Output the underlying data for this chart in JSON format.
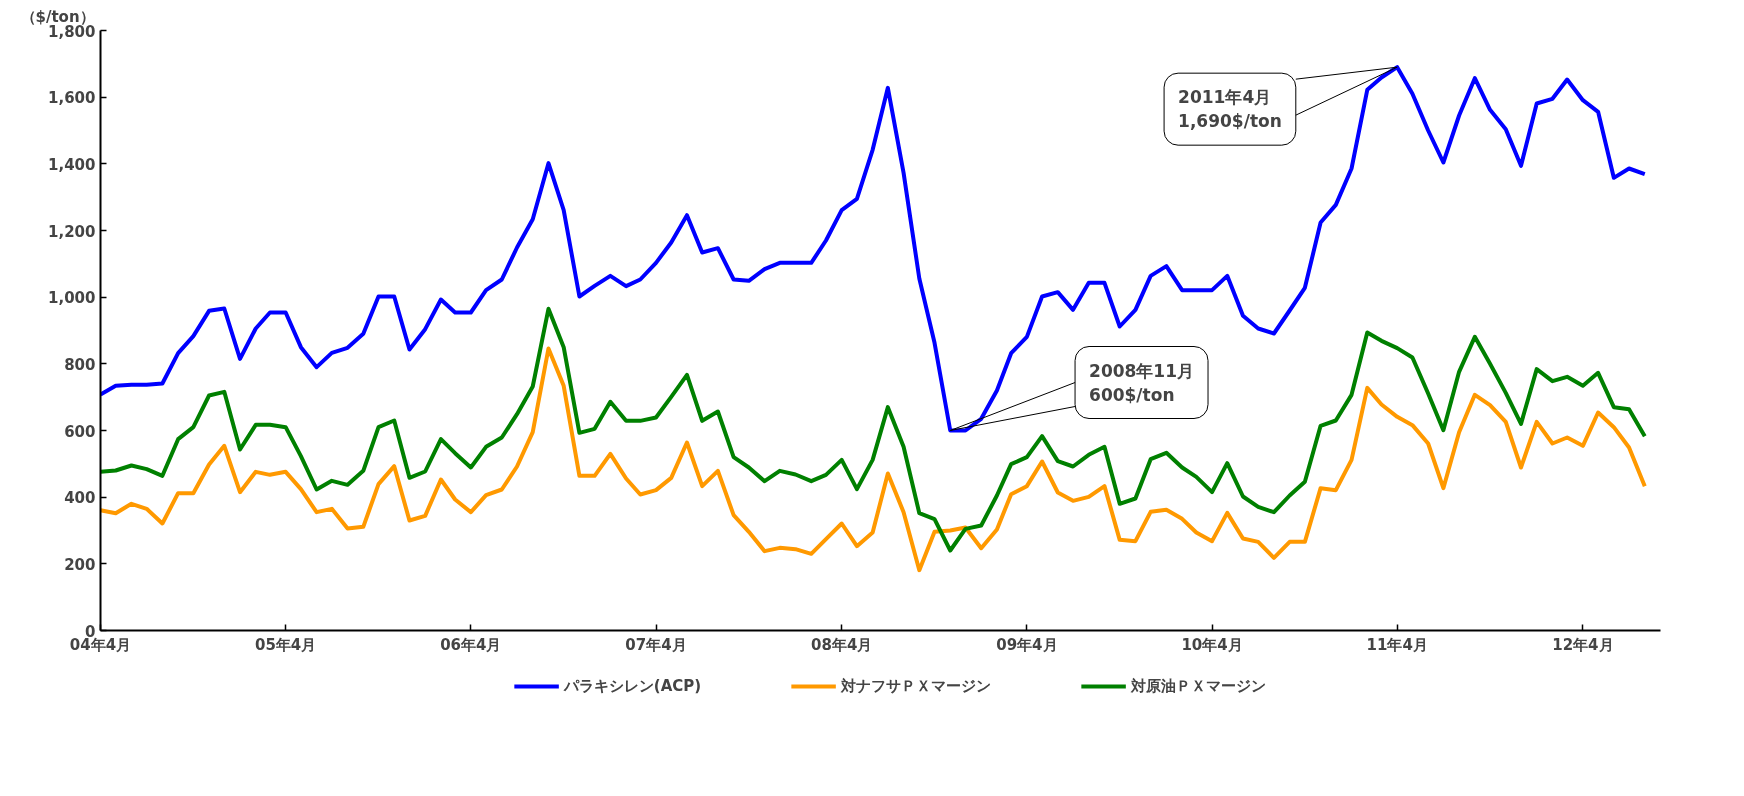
{
  "chart_data": {
    "type": "line",
    "ylabel": "（$/ton）",
    "x": [
      "2004-04",
      "2004-05",
      "2004-06",
      "2004-07",
      "2004-08",
      "2004-09",
      "2004-10",
      "2004-11",
      "2004-12",
      "2005-01",
      "2005-02",
      "2005-03",
      "2005-04",
      "2005-05",
      "2005-06",
      "2005-07",
      "2005-08",
      "2005-09",
      "2005-10",
      "2005-11",
      "2005-12",
      "2006-01",
      "2006-02",
      "2006-03",
      "2006-04",
      "2006-05",
      "2006-06",
      "2006-07",
      "2006-08",
      "2006-09",
      "2006-10",
      "2006-11",
      "2006-12",
      "2007-01",
      "2007-02",
      "2007-03",
      "2007-04",
      "2007-05",
      "2007-06",
      "2007-07",
      "2007-08",
      "2007-09",
      "2007-10",
      "2007-11",
      "2007-12",
      "2008-01",
      "2008-02",
      "2008-03",
      "2008-04",
      "2008-05",
      "2008-06",
      "2008-07",
      "2008-08",
      "2008-09",
      "2008-10",
      "2008-11",
      "2008-12",
      "2009-01",
      "2009-02",
      "2009-03",
      "2009-04",
      "2009-05",
      "2009-06",
      "2009-07",
      "2009-08",
      "2009-09",
      "2009-10",
      "2009-11",
      "2009-12",
      "2010-01",
      "2010-02",
      "2010-03",
      "2010-04",
      "2010-05",
      "2010-06",
      "2010-07",
      "2010-08",
      "2010-09",
      "2010-10",
      "2010-11",
      "2010-12",
      "2011-01",
      "2011-02",
      "2011-03",
      "2011-04",
      "2011-05",
      "2011-06",
      "2011-07",
      "2011-08",
      "2011-09",
      "2011-10",
      "2011-11",
      "2011-12",
      "2012-01",
      "2012-02",
      "2012-03",
      "2012-04",
      "2012-05",
      "2012-06",
      "2012-07",
      "2012-08"
    ],
    "series": [
      {
        "name": "パラキシレン(ACP)",
        "color": "#0000ff",
        "values": [
          708,
          734,
          737,
          737,
          741,
          832,
          883,
          959,
          966,
          815,
          906,
          954,
          954,
          850,
          790,
          833,
          848,
          890,
          1002,
          1002,
          843,
          904,
          993,
          954,
          954,
          1021,
          1053,
          1149,
          1234,
          1402,
          1261,
          1002,
          1034,
          1064,
          1033,
          1053,
          1103,
          1164,
          1246,
          1134,
          1147,
          1053,
          1049,
          1084,
          1103,
          1103,
          1103,
          1170,
          1261,
          1295,
          1442,
          1628,
          1373,
          1056,
          863,
          600,
          600,
          635,
          720,
          832,
          881,
          1002,
          1015,
          962,
          1043,
          1043,
          912,
          962,
          1064,
          1093,
          1021,
          1021,
          1021,
          1064,
          944,
          906,
          891,
          960,
          1028,
          1224,
          1277,
          1386,
          1622,
          1659,
          1690,
          1610,
          1500,
          1404,
          1545,
          1657,
          1562,
          1504,
          1394,
          1581,
          1595,
          1653,
          1591,
          1556,
          1358,
          1386,
          1369
        ]
      },
      {
        "name": "対ナフサＰＸマージン",
        "color": "#ff9900",
        "values": [
          361,
          352,
          380,
          365,
          321,
          412,
          412,
          498,
          554,
          415,
          476,
          467,
          476,
          424,
          355,
          365,
          306,
          311,
          439,
          493,
          330,
          344,
          453,
          393,
          355,
          406,
          423,
          492,
          595,
          846,
          734,
          464,
          464,
          530,
          456,
          408,
          421,
          458,
          564,
          433,
          479,
          346,
          296,
          238,
          248,
          244,
          230,
          274,
          321,
          253,
          294,
          471,
          355,
          181,
          296,
          300,
          309,
          247,
          303,
          409,
          433,
          507,
          414,
          389,
          401,
          433,
          272,
          268,
          356,
          362,
          335,
          294,
          268,
          353,
          276,
          266,
          218,
          266,
          266,
          427,
          421,
          512,
          728,
          678,
          641,
          616,
          561,
          427,
          595,
          707,
          676,
          626,
          489,
          626,
          561,
          579,
          554,
          654,
          610,
          549,
          433
        ]
      },
      {
        "name": "対原油ＰＸマージン",
        "color": "#008000",
        "values": [
          476,
          480,
          495,
          484,
          464,
          574,
          610,
          705,
          716,
          543,
          617,
          617,
          610,
          523,
          423,
          449,
          437,
          479,
          610,
          630,
          458,
          477,
          574,
          532,
          489,
          551,
          579,
          649,
          732,
          965,
          850,
          593,
          605,
          686,
          629,
          629,
          639,
          701,
          767,
          629,
          657,
          520,
          489,
          448,
          479,
          468,
          448,
          467,
          512,
          424,
          512,
          670,
          551,
          352,
          334,
          240,
          305,
          315,
          405,
          499,
          520,
          583,
          508,
          492,
          527,
          551,
          380,
          396,
          514,
          533,
          489,
          461,
          415,
          502,
          402,
          371,
          355,
          405,
          446,
          614,
          630,
          707,
          894,
          869,
          847,
          819,
          711,
          601,
          776,
          881,
          800,
          713,
          620,
          784,
          748,
          761,
          734,
          773,
          670,
          664,
          583
        ]
      }
    ],
    "xlim": [
      "2004-04",
      "2012-09"
    ],
    "xticks": [
      {
        "value": "2004-04",
        "label": "04年4月"
      },
      {
        "value": "2005-04",
        "label": "05年4月"
      },
      {
        "value": "2006-04",
        "label": "06年4月"
      },
      {
        "value": "2007-04",
        "label": "07年4月"
      },
      {
        "value": "2008-04",
        "label": "08年4月"
      },
      {
        "value": "2009-04",
        "label": "09年4月"
      },
      {
        "value": "2010-04",
        "label": "10年4月"
      },
      {
        "value": "2011-04",
        "label": "11年4月"
      },
      {
        "value": "2012-04",
        "label": "12年4月"
      }
    ],
    "ylim": [
      0,
      1800
    ],
    "yticks": [
      0,
      200,
      400,
      600,
      800,
      {
        "value": 1000,
        "label": "1,000"
      },
      {
        "value": 1200,
        "label": "1,200"
      },
      {
        "value": 1400,
        "label": "1,400"
      },
      {
        "value": 1600,
        "label": "1,600"
      },
      {
        "value": 1800,
        "label": "1,800"
      }
    ],
    "annotations": [
      {
        "text": "2008年11月\n600$/ton",
        "x": "2008-11",
        "y": 600
      },
      {
        "text": "2011年4月\n1,690$/ton",
        "x": "2011-04",
        "y": 1690
      }
    ],
    "grid": false,
    "legend": "bottom",
    "marker": "none",
    "line_style": "solid"
  }
}
